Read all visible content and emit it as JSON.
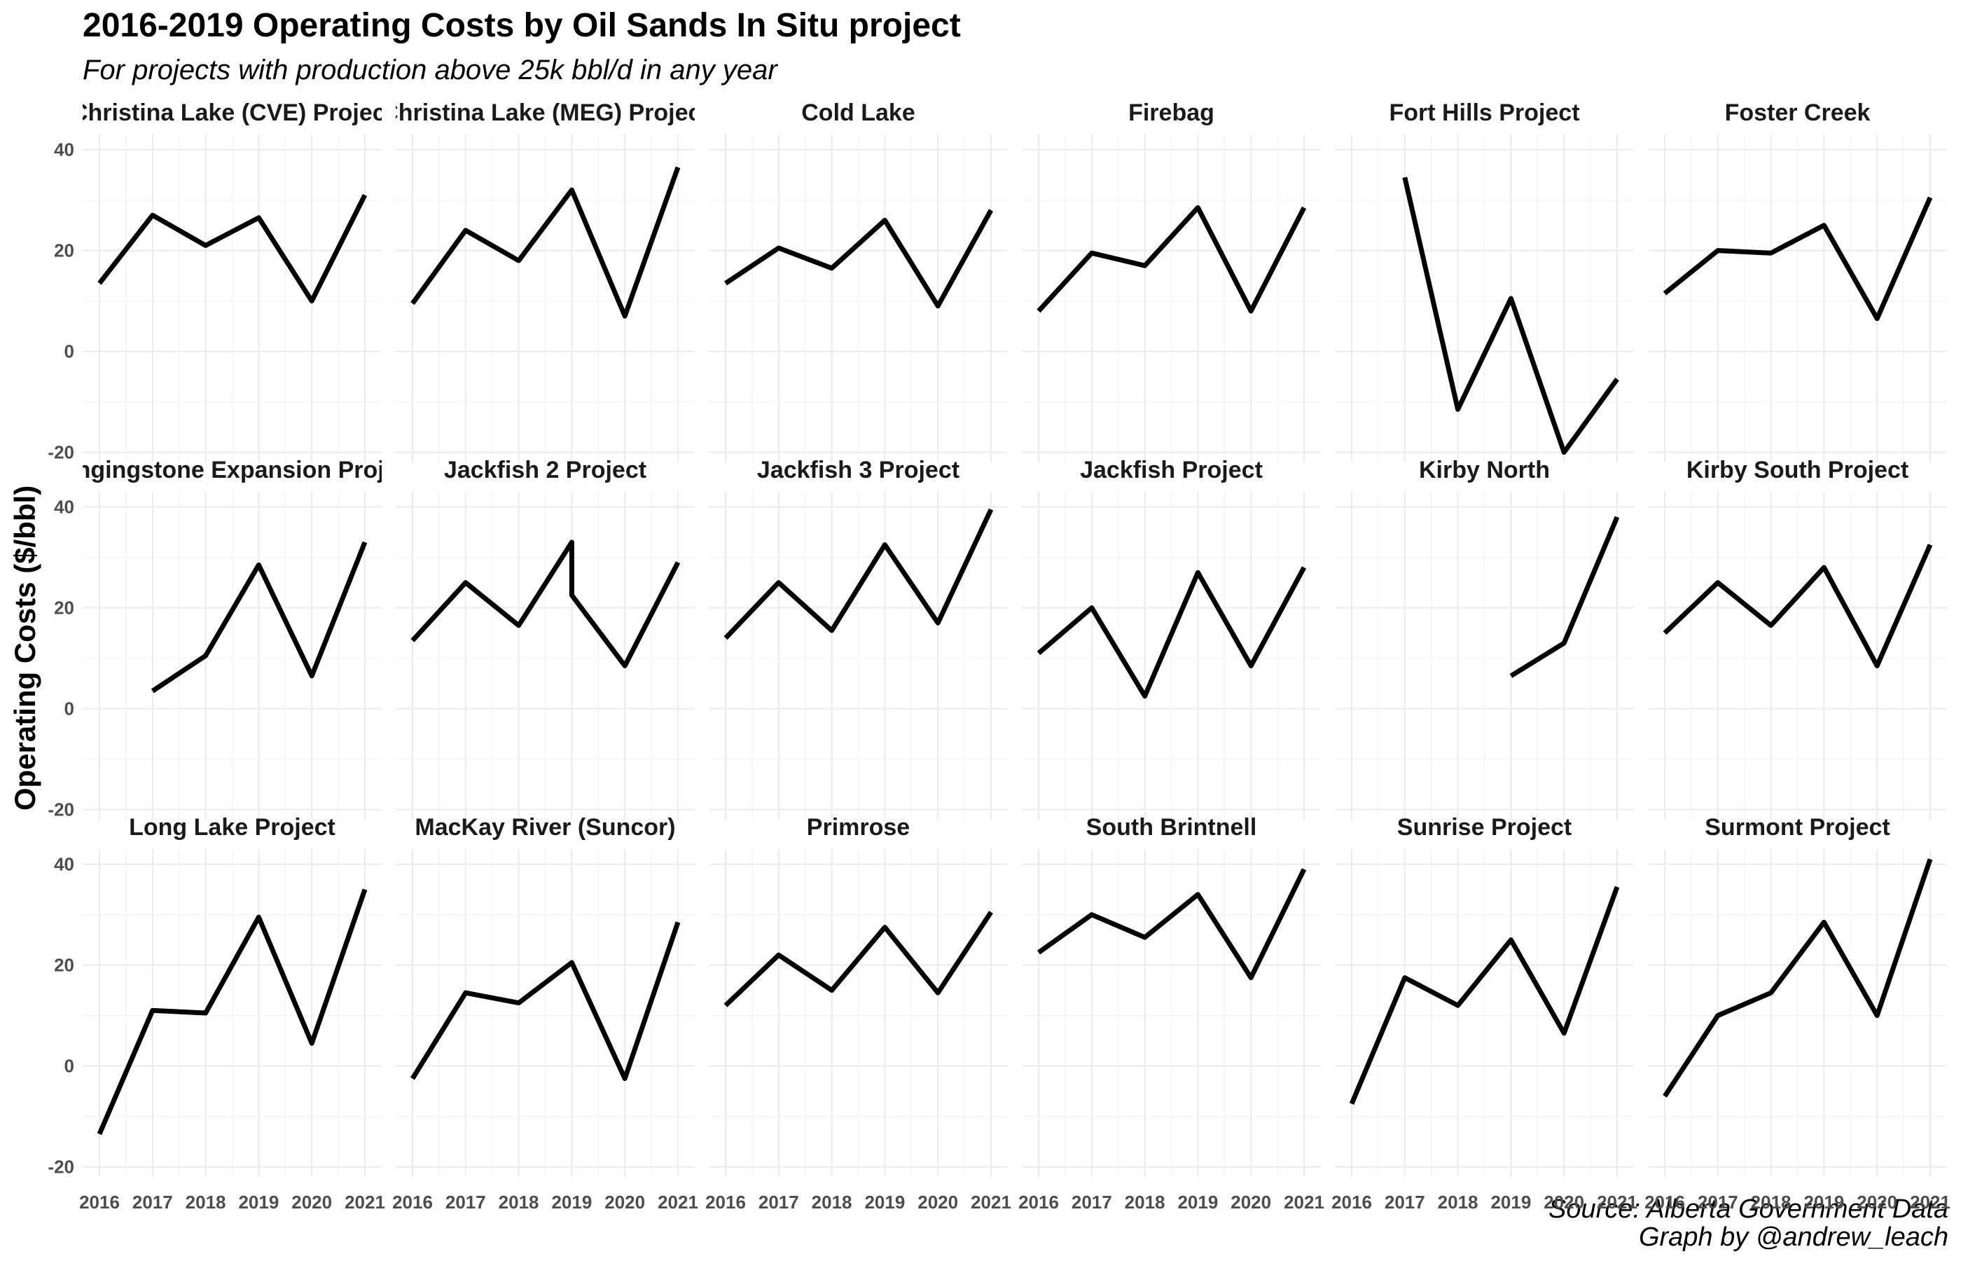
{
  "chart_data": {
    "type": "line",
    "title": "2016-2019 Operating Costs by Oil Sands In Situ project",
    "subtitle": "For projects with production above 25k bbl/d in any year",
    "ylabel": "Operating Costs ($/bbl)",
    "xlabel": "",
    "caption": [
      "Source: Alberta Government Data",
      "Graph by @andrew_leach"
    ],
    "x": [
      "2016",
      "2017",
      "2018",
      "2019",
      "2020",
      "2021"
    ],
    "xlim": [
      2016,
      2021
    ],
    "ylim": [
      -22,
      43
    ],
    "yticks": [
      -20,
      0,
      20,
      40
    ],
    "grid": true,
    "legend": "none",
    "line_color": "#000000",
    "panels": [
      {
        "name": "Christina Lake (CVE) Project",
        "points": [
          [
            2016,
            13.5
          ],
          [
            2017,
            27
          ],
          [
            2018,
            21
          ],
          [
            2019,
            26.5
          ],
          [
            2020,
            10
          ],
          [
            2021,
            31
          ]
        ]
      },
      {
        "name": "Christina Lake (MEG) Project",
        "points": [
          [
            2016,
            9.5
          ],
          [
            2017,
            24
          ],
          [
            2018,
            18
          ],
          [
            2019,
            32
          ],
          [
            2020,
            7
          ],
          [
            2021,
            36.5
          ]
        ]
      },
      {
        "name": "Cold Lake",
        "points": [
          [
            2016,
            13.5
          ],
          [
            2017,
            20.5
          ],
          [
            2018,
            16.5
          ],
          [
            2019,
            26
          ],
          [
            2020,
            9
          ],
          [
            2021,
            28
          ]
        ]
      },
      {
        "name": "Firebag",
        "points": [
          [
            2016,
            8
          ],
          [
            2017,
            19.5
          ],
          [
            2018,
            17
          ],
          [
            2019,
            28.5
          ],
          [
            2020,
            8
          ],
          [
            2021,
            28.5
          ]
        ]
      },
      {
        "name": "Fort Hills Project",
        "points": [
          [
            2017,
            34.5
          ],
          [
            2018,
            -11.5
          ],
          [
            2019,
            10.5
          ],
          [
            2020,
            -20
          ],
          [
            2021,
            -5.5
          ]
        ]
      },
      {
        "name": "Foster Creek",
        "points": [
          [
            2016,
            11.5
          ],
          [
            2017,
            20
          ],
          [
            2018,
            19.5
          ],
          [
            2019,
            25
          ],
          [
            2020,
            6.5
          ],
          [
            2021,
            30.5
          ]
        ]
      },
      {
        "name": "Hangingstone Expansion Project",
        "points": [
          [
            2017,
            3.5
          ],
          [
            2018,
            10.5
          ],
          [
            2019,
            28.5
          ],
          [
            2020,
            6.5
          ],
          [
            2021,
            33
          ]
        ]
      },
      {
        "name": "Jackfish 2 Project",
        "points": [
          [
            2016,
            13.5
          ],
          [
            2017,
            25
          ],
          [
            2018,
            16.5
          ],
          [
            2019,
            33
          ],
          [
            2019,
            22.5
          ],
          [
            2020,
            8.5
          ],
          [
            2021,
            29
          ]
        ]
      },
      {
        "name": "Jackfish 3 Project",
        "points": [
          [
            2016,
            14
          ],
          [
            2017,
            25
          ],
          [
            2018,
            15.5
          ],
          [
            2019,
            32.5
          ],
          [
            2020,
            17
          ],
          [
            2021,
            39.5
          ]
        ]
      },
      {
        "name": "Jackfish Project",
        "points": [
          [
            2016,
            11
          ],
          [
            2017,
            20
          ],
          [
            2018,
            2.5
          ],
          [
            2019,
            27
          ],
          [
            2020,
            8.5
          ],
          [
            2021,
            28
          ]
        ]
      },
      {
        "name": "Kirby North",
        "points": [
          [
            2019,
            6.5
          ],
          [
            2020,
            13
          ],
          [
            2021,
            38
          ]
        ]
      },
      {
        "name": "Kirby South Project",
        "points": [
          [
            2016,
            15
          ],
          [
            2017,
            25
          ],
          [
            2018,
            16.5
          ],
          [
            2019,
            28
          ],
          [
            2020,
            8.5
          ],
          [
            2021,
            32.5
          ]
        ]
      },
      {
        "name": "Long Lake Project",
        "points": [
          [
            2016,
            -13.5
          ],
          [
            2017,
            11
          ],
          [
            2018,
            10.5
          ],
          [
            2019,
            29.5
          ],
          [
            2020,
            4.5
          ],
          [
            2021,
            35
          ]
        ]
      },
      {
        "name": "MacKay River (Suncor)",
        "points": [
          [
            2016,
            -2.5
          ],
          [
            2017,
            14.5
          ],
          [
            2018,
            12.5
          ],
          [
            2019,
            20.5
          ],
          [
            2020,
            -2.5
          ],
          [
            2021,
            28.5
          ]
        ]
      },
      {
        "name": "Primrose",
        "points": [
          [
            2016,
            12
          ],
          [
            2017,
            22
          ],
          [
            2018,
            15
          ],
          [
            2019,
            27.5
          ],
          [
            2020,
            14.5
          ],
          [
            2021,
            30.5
          ]
        ]
      },
      {
        "name": "South Brintnell",
        "points": [
          [
            2016,
            22.5
          ],
          [
            2017,
            30
          ],
          [
            2018,
            25.5
          ],
          [
            2019,
            34
          ],
          [
            2020,
            17.5
          ],
          [
            2021,
            39
          ]
        ]
      },
      {
        "name": "Sunrise Project",
        "points": [
          [
            2016,
            -7.5
          ],
          [
            2017,
            17.5
          ],
          [
            2018,
            12
          ],
          [
            2019,
            25
          ],
          [
            2020,
            6.5
          ],
          [
            2021,
            35.5
          ]
        ]
      },
      {
        "name": "Surmont Project",
        "points": [
          [
            2016,
            -6
          ],
          [
            2017,
            10
          ],
          [
            2018,
            14.5
          ],
          [
            2019,
            28.5
          ],
          [
            2020,
            10
          ],
          [
            2021,
            41
          ]
        ]
      }
    ]
  }
}
